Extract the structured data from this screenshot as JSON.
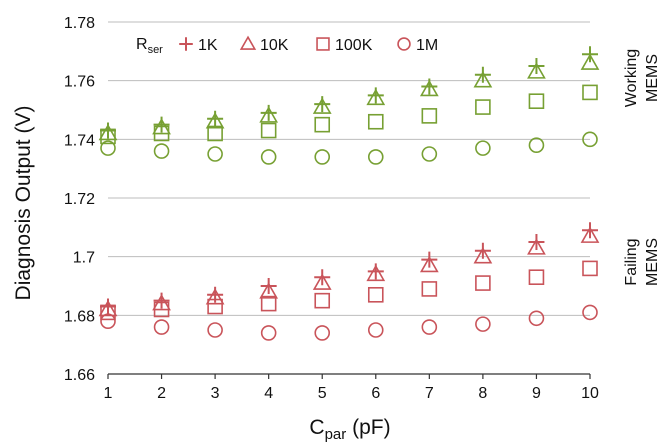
{
  "chart_data": {
    "type": "scatter",
    "xlabel": "C",
    "xlabel_sub": "par",
    "xlabel_unit": " (pF)",
    "ylabel": "Diagnosis Output (V)",
    "xlim": [
      1,
      10
    ],
    "ylim": [
      1.66,
      1.78
    ],
    "x_ticks": [
      1,
      2,
      3,
      4,
      5,
      6,
      7,
      8,
      9,
      10
    ],
    "y_ticks": [
      "1.66",
      "1.68",
      "1.7",
      "1.72",
      "1.74",
      "1.76",
      "1.78"
    ],
    "grid": "horizontal",
    "legend": {
      "title": "R",
      "title_sub": "ser",
      "placement": "top-left",
      "entries": [
        {
          "label": "1K",
          "marker": "plus"
        },
        {
          "label": "10K",
          "marker": "triangle"
        },
        {
          "label": "100K",
          "marker": "square"
        },
        {
          "label": "1M",
          "marker": "circle"
        }
      ]
    },
    "groups": [
      {
        "label_line1": "Working",
        "label_line2": "MEMS",
        "color": "#77a033",
        "series": [
          {
            "name": "1K",
            "marker": "plus",
            "x": [
              1,
              2,
              3,
              4,
              5,
              6,
              7,
              8,
              9,
              10
            ],
            "y": [
              1.743,
              1.745,
              1.747,
              1.749,
              1.752,
              1.755,
              1.758,
              1.762,
              1.765,
              1.769
            ]
          },
          {
            "name": "10K",
            "marker": "triangle",
            "x": [
              1,
              2,
              3,
              4,
              5,
              6,
              7,
              8,
              9,
              10
            ],
            "y": [
              1.742,
              1.744,
              1.746,
              1.748,
              1.751,
              1.754,
              1.757,
              1.76,
              1.763,
              1.766
            ]
          },
          {
            "name": "100K",
            "marker": "square",
            "x": [
              1,
              2,
              3,
              4,
              5,
              6,
              7,
              8,
              9,
              10
            ],
            "y": [
              1.741,
              1.742,
              1.742,
              1.743,
              1.745,
              1.746,
              1.748,
              1.751,
              1.753,
              1.756
            ]
          },
          {
            "name": "1M",
            "marker": "circle",
            "x": [
              1,
              2,
              3,
              4,
              5,
              6,
              7,
              8,
              9,
              10
            ],
            "y": [
              1.737,
              1.736,
              1.735,
              1.734,
              1.734,
              1.734,
              1.735,
              1.737,
              1.738,
              1.74
            ]
          }
        ]
      },
      {
        "label_line1": "Failing",
        "label_line2": "MEMS",
        "color": "#c9545a",
        "series": [
          {
            "name": "1K",
            "marker": "plus",
            "x": [
              1,
              2,
              3,
              4,
              5,
              6,
              7,
              8,
              9,
              10
            ],
            "y": [
              1.683,
              1.685,
              1.687,
              1.69,
              1.693,
              1.695,
              1.699,
              1.702,
              1.705,
              1.709
            ]
          },
          {
            "name": "10K",
            "marker": "triangle",
            "x": [
              1,
              2,
              3,
              4,
              5,
              6,
              7,
              8,
              9,
              10
            ],
            "y": [
              1.682,
              1.684,
              1.686,
              1.688,
              1.691,
              1.694,
              1.697,
              1.7,
              1.703,
              1.707
            ]
          },
          {
            "name": "100K",
            "marker": "square",
            "x": [
              1,
              2,
              3,
              4,
              5,
              6,
              7,
              8,
              9,
              10
            ],
            "y": [
              1.681,
              1.682,
              1.683,
              1.684,
              1.685,
              1.687,
              1.689,
              1.691,
              1.693,
              1.696
            ]
          },
          {
            "name": "1M",
            "marker": "circle",
            "x": [
              1,
              2,
              3,
              4,
              5,
              6,
              7,
              8,
              9,
              10
            ],
            "y": [
              1.678,
              1.676,
              1.675,
              1.674,
              1.674,
              1.675,
              1.676,
              1.677,
              1.679,
              1.681
            ]
          }
        ]
      }
    ]
  }
}
